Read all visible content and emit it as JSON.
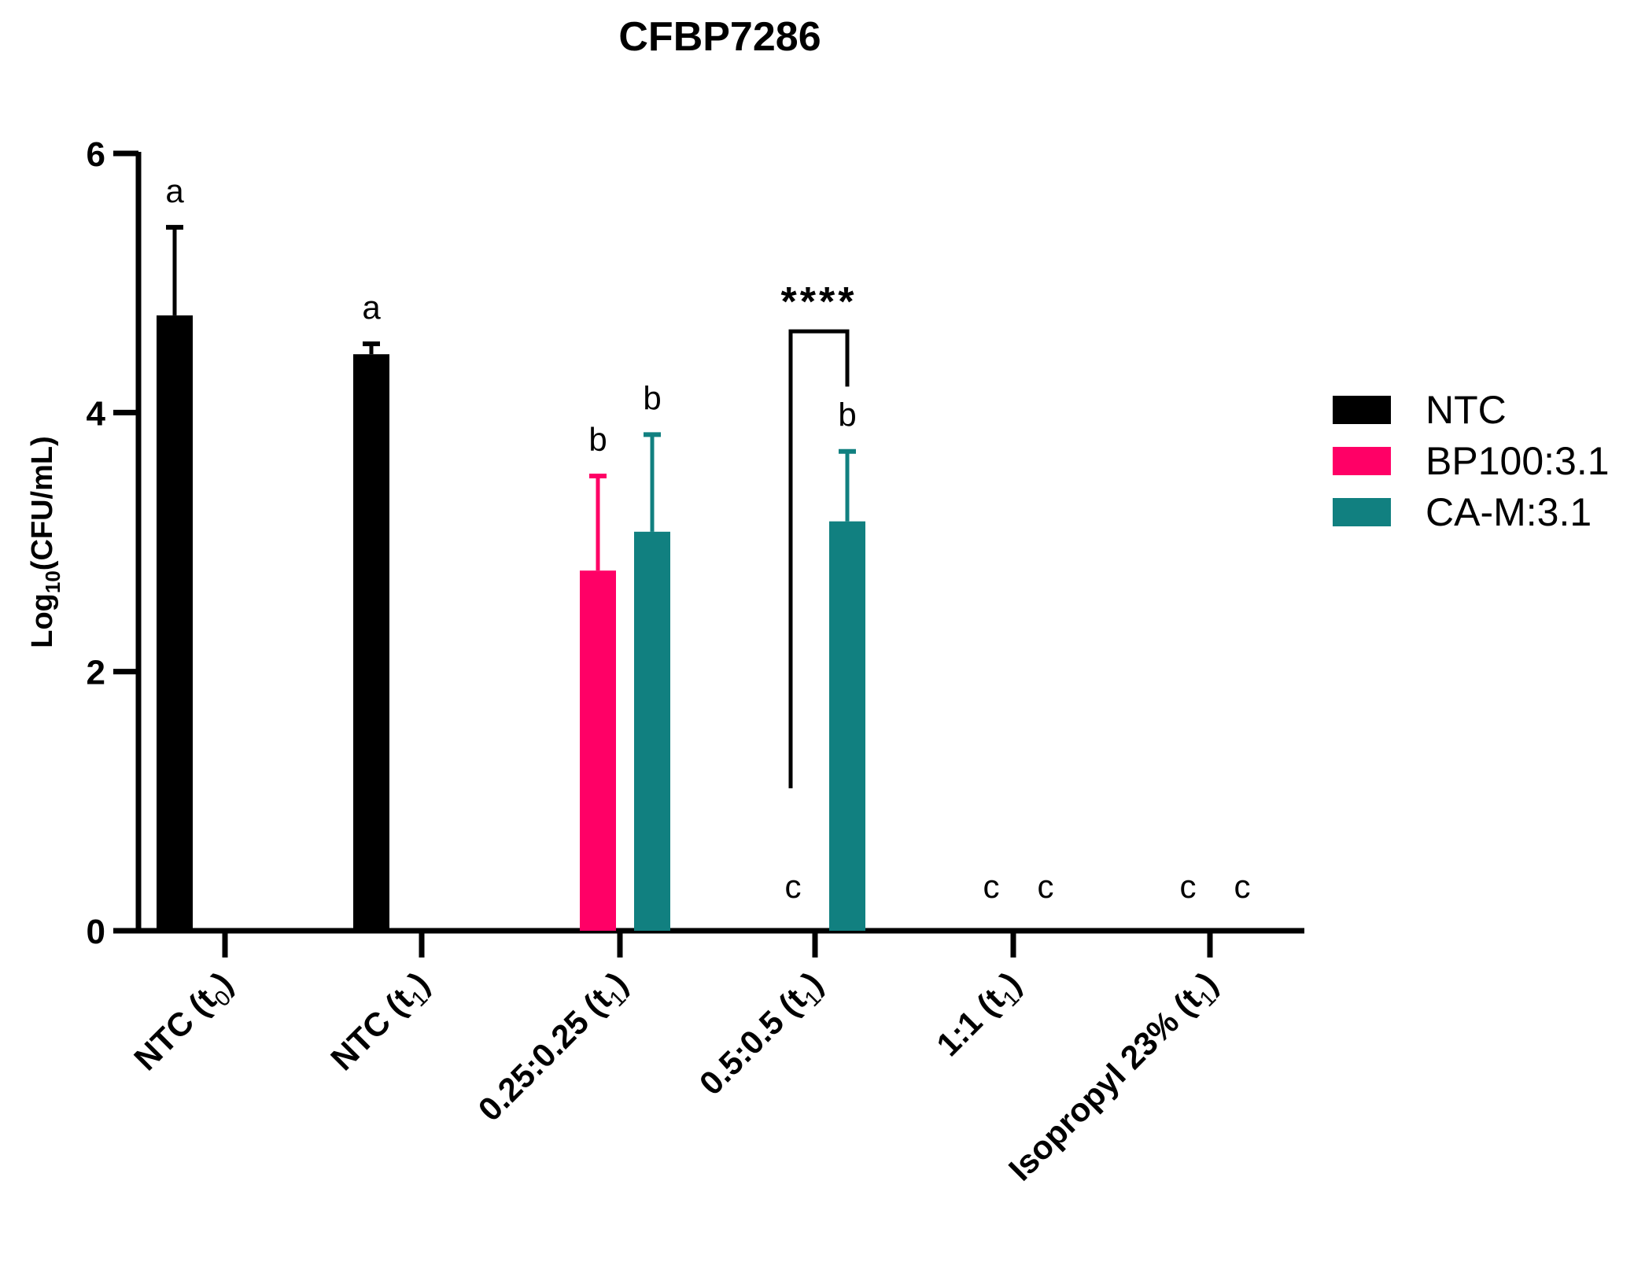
{
  "chart_data": {
    "type": "bar",
    "title": "CFBP7286",
    "ylabel": "Log10(CFU/mL)",
    "ylabel_parts": {
      "main": "Log",
      "sub": "10",
      "rest": "(CFU/mL)"
    },
    "xlabel": "",
    "ylim": [
      0,
      6
    ],
    "yticks": [
      0,
      2,
      4,
      6
    ],
    "categories": [
      {
        "main": "NTC (t",
        "sub": "0",
        "tail": ")"
      },
      {
        "main": "NTC (t",
        "sub": "1",
        "tail": ")"
      },
      {
        "main": "0.25:0.25 (t",
        "sub": "1",
        "tail": ")"
      },
      {
        "main": "0.5:0.5 (t",
        "sub": "1",
        "tail": ")"
      },
      {
        "main": "1:1 (t",
        "sub": "1",
        "tail": ")"
      },
      {
        "main": "Isopropyl 23% (t",
        "sub": "1",
        "tail": ")"
      }
    ],
    "series": [
      {
        "name": "NTC",
        "color": "#000000",
        "values": [
          4.75,
          4.45,
          null,
          null,
          null,
          null
        ],
        "errors": [
          0.68,
          0.08,
          null,
          null,
          null,
          null
        ],
        "letters": [
          "a",
          "a",
          "",
          "",
          "",
          ""
        ]
      },
      {
        "name": "BP100:3.1",
        "color": "#ff0066",
        "values": [
          null,
          null,
          2.78,
          0,
          0,
          0
        ],
        "errors": [
          null,
          null,
          0.73,
          null,
          null,
          null
        ],
        "letters": [
          "",
          "",
          "b",
          "c",
          "c",
          "c"
        ]
      },
      {
        "name": "CA-M:3.1",
        "color": "#118080",
        "values": [
          null,
          null,
          3.08,
          3.16,
          0,
          0
        ],
        "errors": [
          null,
          null,
          0.75,
          0.54,
          null,
          null
        ],
        "letters": [
          "",
          "",
          "b",
          "b",
          "c",
          "c"
        ]
      }
    ],
    "significance": {
      "label": "****",
      "category": 3,
      "bracket_left": 1.1,
      "bracket_right": 4.2,
      "bracket_top": 4.7
    },
    "legend_position": "right",
    "grid": false
  }
}
